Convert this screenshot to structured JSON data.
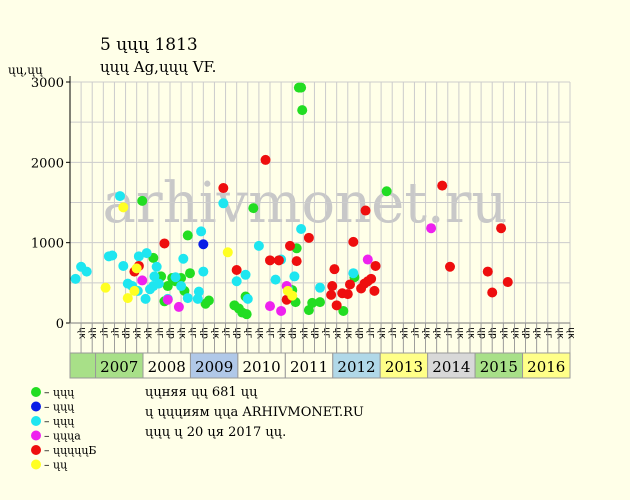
{
  "header": {
    "title": "5 ųųų 1813",
    "subtitle": "ųųų Ag,ųųų VF.",
    "unit_label": "ųų,ųų"
  },
  "footer": {
    "lines": [
      "ųųняя ųų 681 ųų",
      "ų ųųųиям ųųа ARHIVMONET.RU",
      "ųųų ų 20 ųя 2017 ųų."
    ]
  },
  "watermark": "arhivmonet.ru",
  "chart_data": {
    "type": "scatter",
    "title": "5 ųųų 1813",
    "subtitle": "ųųų Ag,ųųų VF.",
    "ylabel": "ųų,ųų",
    "ylim": [
      0,
      3000
    ],
    "yticks": [
      0,
      1000,
      2000,
      3000
    ],
    "grid": true,
    "legend_placement": "bottom-left",
    "years": [
      {
        "label": "2007",
        "color": "#a8e088"
      },
      {
        "label": "2008",
        "color": "#ffffe8"
      },
      {
        "label": "2009",
        "color": "#b0c8e8"
      },
      {
        "label": "2010",
        "color": "#ffffe8"
      },
      {
        "label": "2011",
        "color": "#ffffe8"
      },
      {
        "label": "2012",
        "color": "#b0d8e8"
      },
      {
        "label": "2013",
        "color": "#ffff88"
      },
      {
        "label": "2014",
        "color": "#d8d8d8"
      },
      {
        "label": "2015",
        "color": "#a8e088"
      },
      {
        "label": "2016",
        "color": "#ffff88"
      }
    ],
    "first_column_color": "#a8e088",
    "months": [
      "ųк",
      "ųк",
      "ųг",
      "ųг",
      "ųр",
      "ųк",
      "ųк",
      "ųг",
      "ųр",
      "ųк",
      "ųг",
      "ųр",
      "ųк",
      "ųг",
      "ųр",
      "ųг",
      "ųк",
      "ųг",
      "ųк",
      "ųр",
      "ųк",
      "ųр",
      "ųг",
      "ųк",
      "ųк",
      "ųр",
      "ųг",
      "ųк",
      "ųг",
      "ųк",
      "ųг",
      "ųк",
      "ųк",
      "ųг",
      "ųк",
      "ųк",
      "ųр",
      "ųр",
      "ųк",
      "ųк",
      "ųр",
      "ųк",
      "ųг",
      "ųк",
      "ųк"
    ],
    "series": [
      {
        "name": "– ųųų",
        "color": "#22dd22",
        "points": [
          [
            6.5,
            1520
          ],
          [
            7.5,
            810
          ],
          [
            8.2,
            580
          ],
          [
            8.5,
            270
          ],
          [
            8.8,
            460
          ],
          [
            9.2,
            560
          ],
          [
            9.5,
            520
          ],
          [
            10.0,
            560
          ],
          [
            10.3,
            400
          ],
          [
            10.6,
            1090
          ],
          [
            10.8,
            620
          ],
          [
            12.2,
            240
          ],
          [
            12.5,
            280
          ],
          [
            14.8,
            220
          ],
          [
            15.2,
            180
          ],
          [
            15.5,
            130
          ],
          [
            15.8,
            330
          ],
          [
            15.9,
            110
          ],
          [
            16.5,
            1430
          ],
          [
            20.0,
            410
          ],
          [
            20.3,
            260
          ],
          [
            20.4,
            930
          ],
          [
            20.6,
            2930
          ],
          [
            20.8,
            2930
          ],
          [
            20.9,
            2650
          ],
          [
            21.5,
            160
          ],
          [
            21.8,
            250
          ],
          [
            22.5,
            260
          ],
          [
            24.6,
            150
          ],
          [
            25.6,
            570
          ],
          [
            28.5,
            1640
          ]
        ]
      },
      {
        "name": "– ųųų",
        "color": "#0a1ee6",
        "points": [
          [
            12.0,
            980
          ]
        ]
      },
      {
        "name": "– ųųų",
        "color": "#1ee6f0",
        "points": [
          [
            0.5,
            550
          ],
          [
            1.0,
            700
          ],
          [
            1.5,
            640
          ],
          [
            3.5,
            830
          ],
          [
            3.8,
            840
          ],
          [
            4.5,
            1580
          ],
          [
            4.8,
            710
          ],
          [
            5.2,
            490
          ],
          [
            5.6,
            460
          ],
          [
            6.1,
            400
          ],
          [
            6.2,
            830
          ],
          [
            6.8,
            300
          ],
          [
            6.9,
            870
          ],
          [
            7.2,
            420
          ],
          [
            7.5,
            460
          ],
          [
            7.6,
            580
          ],
          [
            7.8,
            700
          ],
          [
            8.0,
            490
          ],
          [
            8.8,
            300
          ],
          [
            9.5,
            570
          ],
          [
            10.0,
            460
          ],
          [
            10.2,
            800
          ],
          [
            10.6,
            310
          ],
          [
            11.5,
            300
          ],
          [
            11.6,
            390
          ],
          [
            11.8,
            1140
          ],
          [
            12.0,
            640
          ],
          [
            13.8,
            1490
          ],
          [
            15.0,
            520
          ],
          [
            15.8,
            600
          ],
          [
            16.0,
            300
          ],
          [
            17.0,
            960
          ],
          [
            18.5,
            540
          ],
          [
            19.0,
            790
          ],
          [
            19.6,
            430
          ],
          [
            20.2,
            580
          ],
          [
            20.8,
            1170
          ],
          [
            22.5,
            440
          ],
          [
            25.5,
            620
          ]
        ]
      },
      {
        "name": "– ųųųа",
        "color": "#ee22ee",
        "points": [
          [
            6.5,
            530
          ],
          [
            8.8,
            290
          ],
          [
            9.8,
            200
          ],
          [
            18.0,
            210
          ],
          [
            19.0,
            150
          ],
          [
            19.5,
            460
          ],
          [
            26.8,
            790
          ],
          [
            32.5,
            1180
          ]
        ]
      },
      {
        "name": "– ųųųųųБ",
        "color": "#ee0e0e",
        "points": [
          [
            5.8,
            640
          ],
          [
            6.2,
            710
          ],
          [
            8.5,
            990
          ],
          [
            13.8,
            1680
          ],
          [
            15.0,
            660
          ],
          [
            17.6,
            2030
          ],
          [
            18.0,
            780
          ],
          [
            18.8,
            780
          ],
          [
            19.5,
            290
          ],
          [
            19.8,
            960
          ],
          [
            20.4,
            770
          ],
          [
            21.5,
            1060
          ],
          [
            23.5,
            350
          ],
          [
            23.6,
            460
          ],
          [
            23.8,
            670
          ],
          [
            24.0,
            220
          ],
          [
            24.5,
            370
          ],
          [
            25.0,
            360
          ],
          [
            25.2,
            480
          ],
          [
            25.5,
            1010
          ],
          [
            26.2,
            430
          ],
          [
            26.5,
            490
          ],
          [
            26.6,
            1400
          ],
          [
            26.8,
            520
          ],
          [
            27.1,
            550
          ],
          [
            27.4,
            400
          ],
          [
            27.5,
            710
          ],
          [
            33.5,
            1710
          ],
          [
            34.2,
            700
          ],
          [
            37.6,
            640
          ],
          [
            38.0,
            380
          ],
          [
            38.8,
            1180
          ],
          [
            39.4,
            510
          ]
        ]
      },
      {
        "name": "– ųų",
        "color": "#ffff22",
        "points": [
          [
            3.2,
            440
          ],
          [
            4.8,
            1440
          ],
          [
            5.2,
            310
          ],
          [
            5.8,
            400
          ],
          [
            6.0,
            680
          ],
          [
            14.2,
            880
          ],
          [
            19.6,
            400
          ],
          [
            20.0,
            340
          ]
        ]
      }
    ]
  }
}
